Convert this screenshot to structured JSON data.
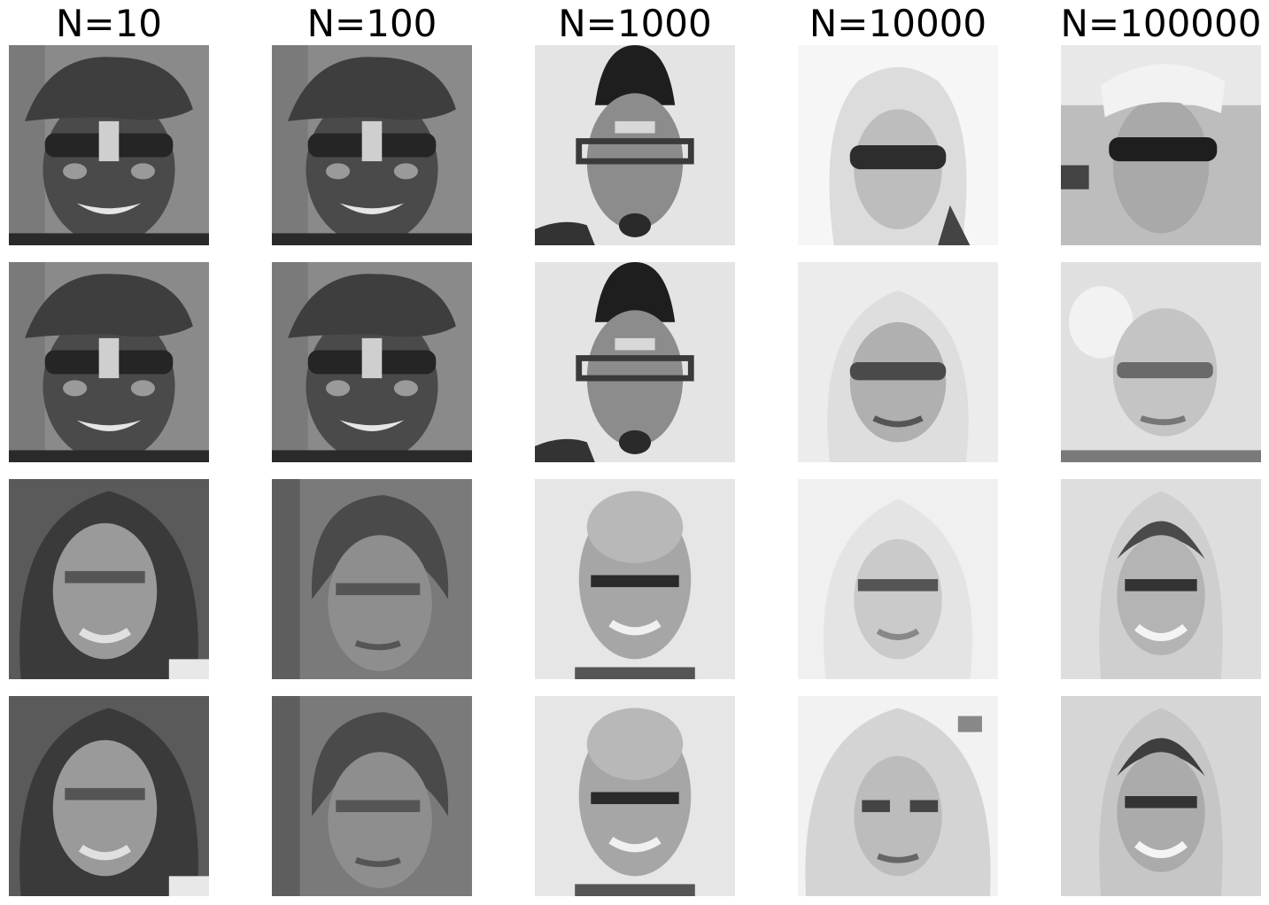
{
  "columns": [
    {
      "title": "N=10"
    },
    {
      "title": "N=100"
    },
    {
      "title": "N=1000"
    },
    {
      "title": "N=10000"
    },
    {
      "title": "N=100000"
    }
  ],
  "grid": [
    [
      "man-cap-sunglasses-grin",
      "man-cap-sunglasses-grin",
      "man-topknot-glasses-goatee",
      "woman-blonde-sunglasses",
      "woman-sunglasses-headscarf"
    ],
    [
      "man-cap-sunglasses-grin",
      "man-cap-sunglasses-grin",
      "man-topknot-glasses-goatee",
      "woman-white-hair-glasses",
      "woman-blurry-glasses"
    ],
    [
      "woman-wavy-hair-smile",
      "man-shaggy-hair",
      "bald-man-smile",
      "woman-blonde-faint",
      "woman-blonde-smile"
    ],
    [
      "woman-wavy-hair-smile",
      "man-shaggy-hair",
      "bald-man-smile",
      "woman-blonde-long-hair",
      "woman-blonde-smile"
    ]
  ]
}
